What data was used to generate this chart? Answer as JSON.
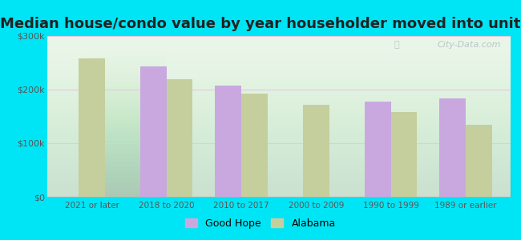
{
  "title": "Median house/condo value by year householder moved into unit",
  "categories": [
    "2021 or later",
    "2018 to 2020",
    "2010 to 2017",
    "2000 to 2009",
    "1990 to 1999",
    "1989 or earlier"
  ],
  "good_hope": [
    null,
    243000,
    207000,
    null,
    178000,
    183000
  ],
  "alabama": [
    258000,
    220000,
    193000,
    172000,
    158000,
    135000
  ],
  "good_hope_color": "#c9a8e0",
  "alabama_color": "#c5cf9d",
  "ylim": [
    0,
    300000
  ],
  "yticks": [
    0,
    100000,
    200000,
    300000
  ],
  "ytick_labels": [
    "$0",
    "$100k",
    "$200k",
    "$300k"
  ],
  "background_outer": "#00e5f5",
  "background_inner": "#e8f5e8",
  "watermark": "City-Data.com",
  "legend_good_hope": "Good Hope",
  "legend_alabama": "Alabama",
  "title_fontsize": 13,
  "bar_width": 0.35,
  "grid_color": "#ddccdd",
  "axis_color": "#888888",
  "tick_label_color": "#555555"
}
